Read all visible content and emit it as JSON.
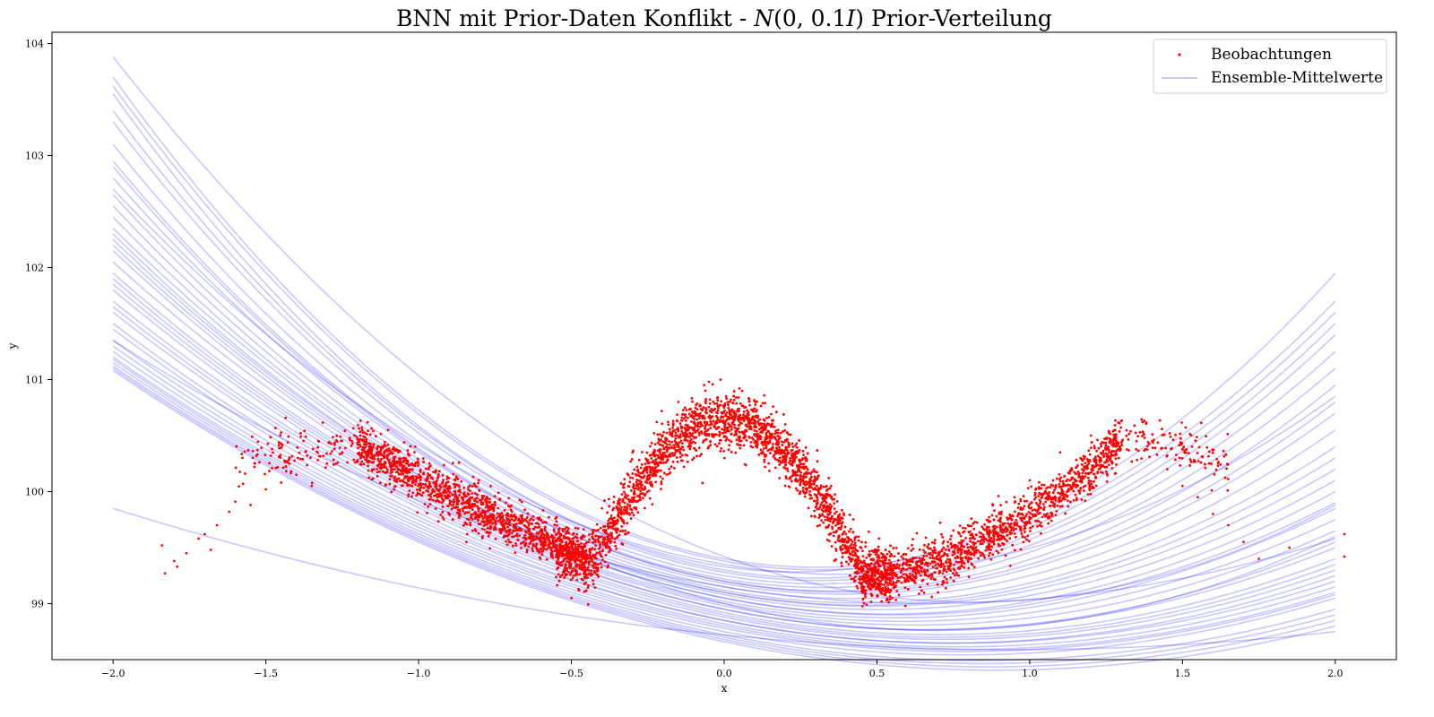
{
  "chart_data": {
    "type": "scatter",
    "title": "BNN mit Prior-Daten Konflikt - N(0, 0.1I) Prior-Verteilung",
    "xlabel": "x",
    "ylabel": "y",
    "xlim": [
      -2.2,
      2.2
    ],
    "ylim": [
      98.5,
      104.1
    ],
    "xticks": [
      -2.0,
      -1.5,
      -1.0,
      -0.5,
      0.0,
      0.5,
      1.0,
      1.5,
      2.0
    ],
    "xtick_labels": [
      "−2.0",
      "−1.5",
      "−1.0",
      "−0.5",
      "0.0",
      "0.5",
      "1.0",
      "1.5",
      "2.0"
    ],
    "yticks": [
      99,
      100,
      101,
      102,
      103,
      104
    ],
    "ytick_labels": [
      "99",
      "100",
      "101",
      "102",
      "103",
      "104"
    ],
    "grid": false,
    "legend_position": "top-right",
    "series": [
      {
        "name": "Beobachtungen",
        "kind": "scatter",
        "color": "#ff0000",
        "count": 20000,
        "x_range": [
          -1.85,
          2.05
        ],
        "points": [
          [
            -1.84,
            99.52
          ],
          [
            -1.83,
            99.27
          ],
          [
            -1.8,
            99.38
          ],
          [
            -1.79,
            99.33
          ],
          [
            -1.76,
            99.45
          ],
          [
            -1.72,
            99.58
          ],
          [
            -1.7,
            99.62
          ],
          [
            -1.68,
            99.48
          ],
          [
            -1.66,
            99.7
          ],
          [
            -1.62,
            99.82
          ],
          [
            -1.6,
            99.91
          ],
          [
            -1.55,
            99.88
          ],
          [
            -1.5,
            100.02
          ],
          [
            -1.45,
            100.08
          ],
          [
            -1.4,
            100.15
          ],
          [
            -1.35,
            100.05
          ],
          [
            -1.3,
            100.25
          ],
          [
            -1.25,
            100.35
          ],
          [
            -1.2,
            100.42
          ],
          [
            -1.1,
            100.55
          ],
          [
            -1.05,
            100.3
          ],
          [
            -0.7,
            99.7
          ],
          [
            -0.6,
            99.55
          ],
          [
            -0.5,
            99.05
          ],
          [
            -0.4,
            99.85
          ],
          [
            -0.3,
            100.35
          ],
          [
            -0.15,
            100.8
          ],
          [
            -0.05,
            100.98
          ],
          [
            0.05,
            100.92
          ],
          [
            0.2,
            100.6
          ],
          [
            0.35,
            100.05
          ],
          [
            0.45,
            99.55
          ],
          [
            0.55,
            99.05
          ],
          [
            0.7,
            99.1
          ],
          [
            0.9,
            99.8
          ],
          [
            1.0,
            100.1
          ],
          [
            1.1,
            100.35
          ],
          [
            1.2,
            100.5
          ],
          [
            1.28,
            100.55
          ],
          [
            1.35,
            100.45
          ],
          [
            1.45,
            100.2
          ],
          [
            1.5,
            100.05
          ],
          [
            1.55,
            99.95
          ],
          [
            1.6,
            99.8
          ],
          [
            1.65,
            99.7
          ],
          [
            1.7,
            99.55
          ],
          [
            1.75,
            99.4
          ],
          [
            1.85,
            99.5
          ],
          [
            2.03,
            99.62
          ],
          [
            2.03,
            99.42
          ]
        ]
      },
      {
        "name": "Ensemble-Mittelwerte",
        "kind": "line",
        "color": "#0000ff",
        "opacity": 0.22,
        "count": 40,
        "x_range": [
          -2.0,
          2.0
        ],
        "curves_y_at_-2_0_2": [
          [
            103.88,
            99.42,
            99.88
          ],
          [
            103.7,
            99.4,
            101.7
          ],
          [
            103.62,
            99.38,
            101.6
          ],
          [
            103.55,
            99.33,
            101.95
          ],
          [
            103.4,
            99.3,
            101.5
          ],
          [
            103.3,
            99.28,
            101.4
          ],
          [
            103.1,
            99.25,
            101.25
          ],
          [
            102.95,
            99.22,
            101.1
          ],
          [
            102.9,
            99.2,
            100.95
          ],
          [
            102.8,
            99.2,
            100.8
          ],
          [
            102.65,
            99.18,
            100.7
          ],
          [
            102.55,
            99.15,
            100.55
          ],
          [
            102.45,
            99.12,
            100.4
          ],
          [
            102.3,
            99.1,
            100.3
          ],
          [
            102.25,
            99.1,
            100.2
          ],
          [
            102.2,
            99.08,
            100.1
          ],
          [
            102.15,
            99.05,
            100.0
          ],
          [
            102.05,
            99.05,
            99.9
          ],
          [
            101.95,
            99.02,
            99.85
          ],
          [
            101.9,
            99.0,
            99.75
          ],
          [
            101.85,
            98.98,
            99.65
          ],
          [
            101.8,
            98.95,
            99.55
          ],
          [
            101.7,
            98.95,
            99.5
          ],
          [
            101.65,
            98.92,
            99.4
          ],
          [
            101.6,
            98.9,
            99.35
          ],
          [
            101.5,
            98.88,
            99.3
          ],
          [
            101.45,
            98.85,
            99.25
          ],
          [
            101.35,
            98.85,
            99.2
          ],
          [
            101.3,
            98.82,
            99.15
          ],
          [
            101.25,
            98.8,
            99.1
          ],
          [
            101.2,
            98.78,
            99.08
          ],
          [
            101.18,
            98.75,
            99.05
          ],
          [
            101.15,
            98.72,
            98.95
          ],
          [
            101.12,
            98.7,
            98.9
          ],
          [
            101.1,
            98.68,
            98.85
          ],
          [
            101.08,
            98.66,
            98.8
          ],
          [
            102.7,
            99.35,
            100.85
          ],
          [
            102.35,
            99.0,
            99.6
          ],
          [
            101.35,
            99.15,
            99.58
          ],
          [
            99.85,
            98.72,
            98.75
          ]
        ]
      }
    ]
  }
}
